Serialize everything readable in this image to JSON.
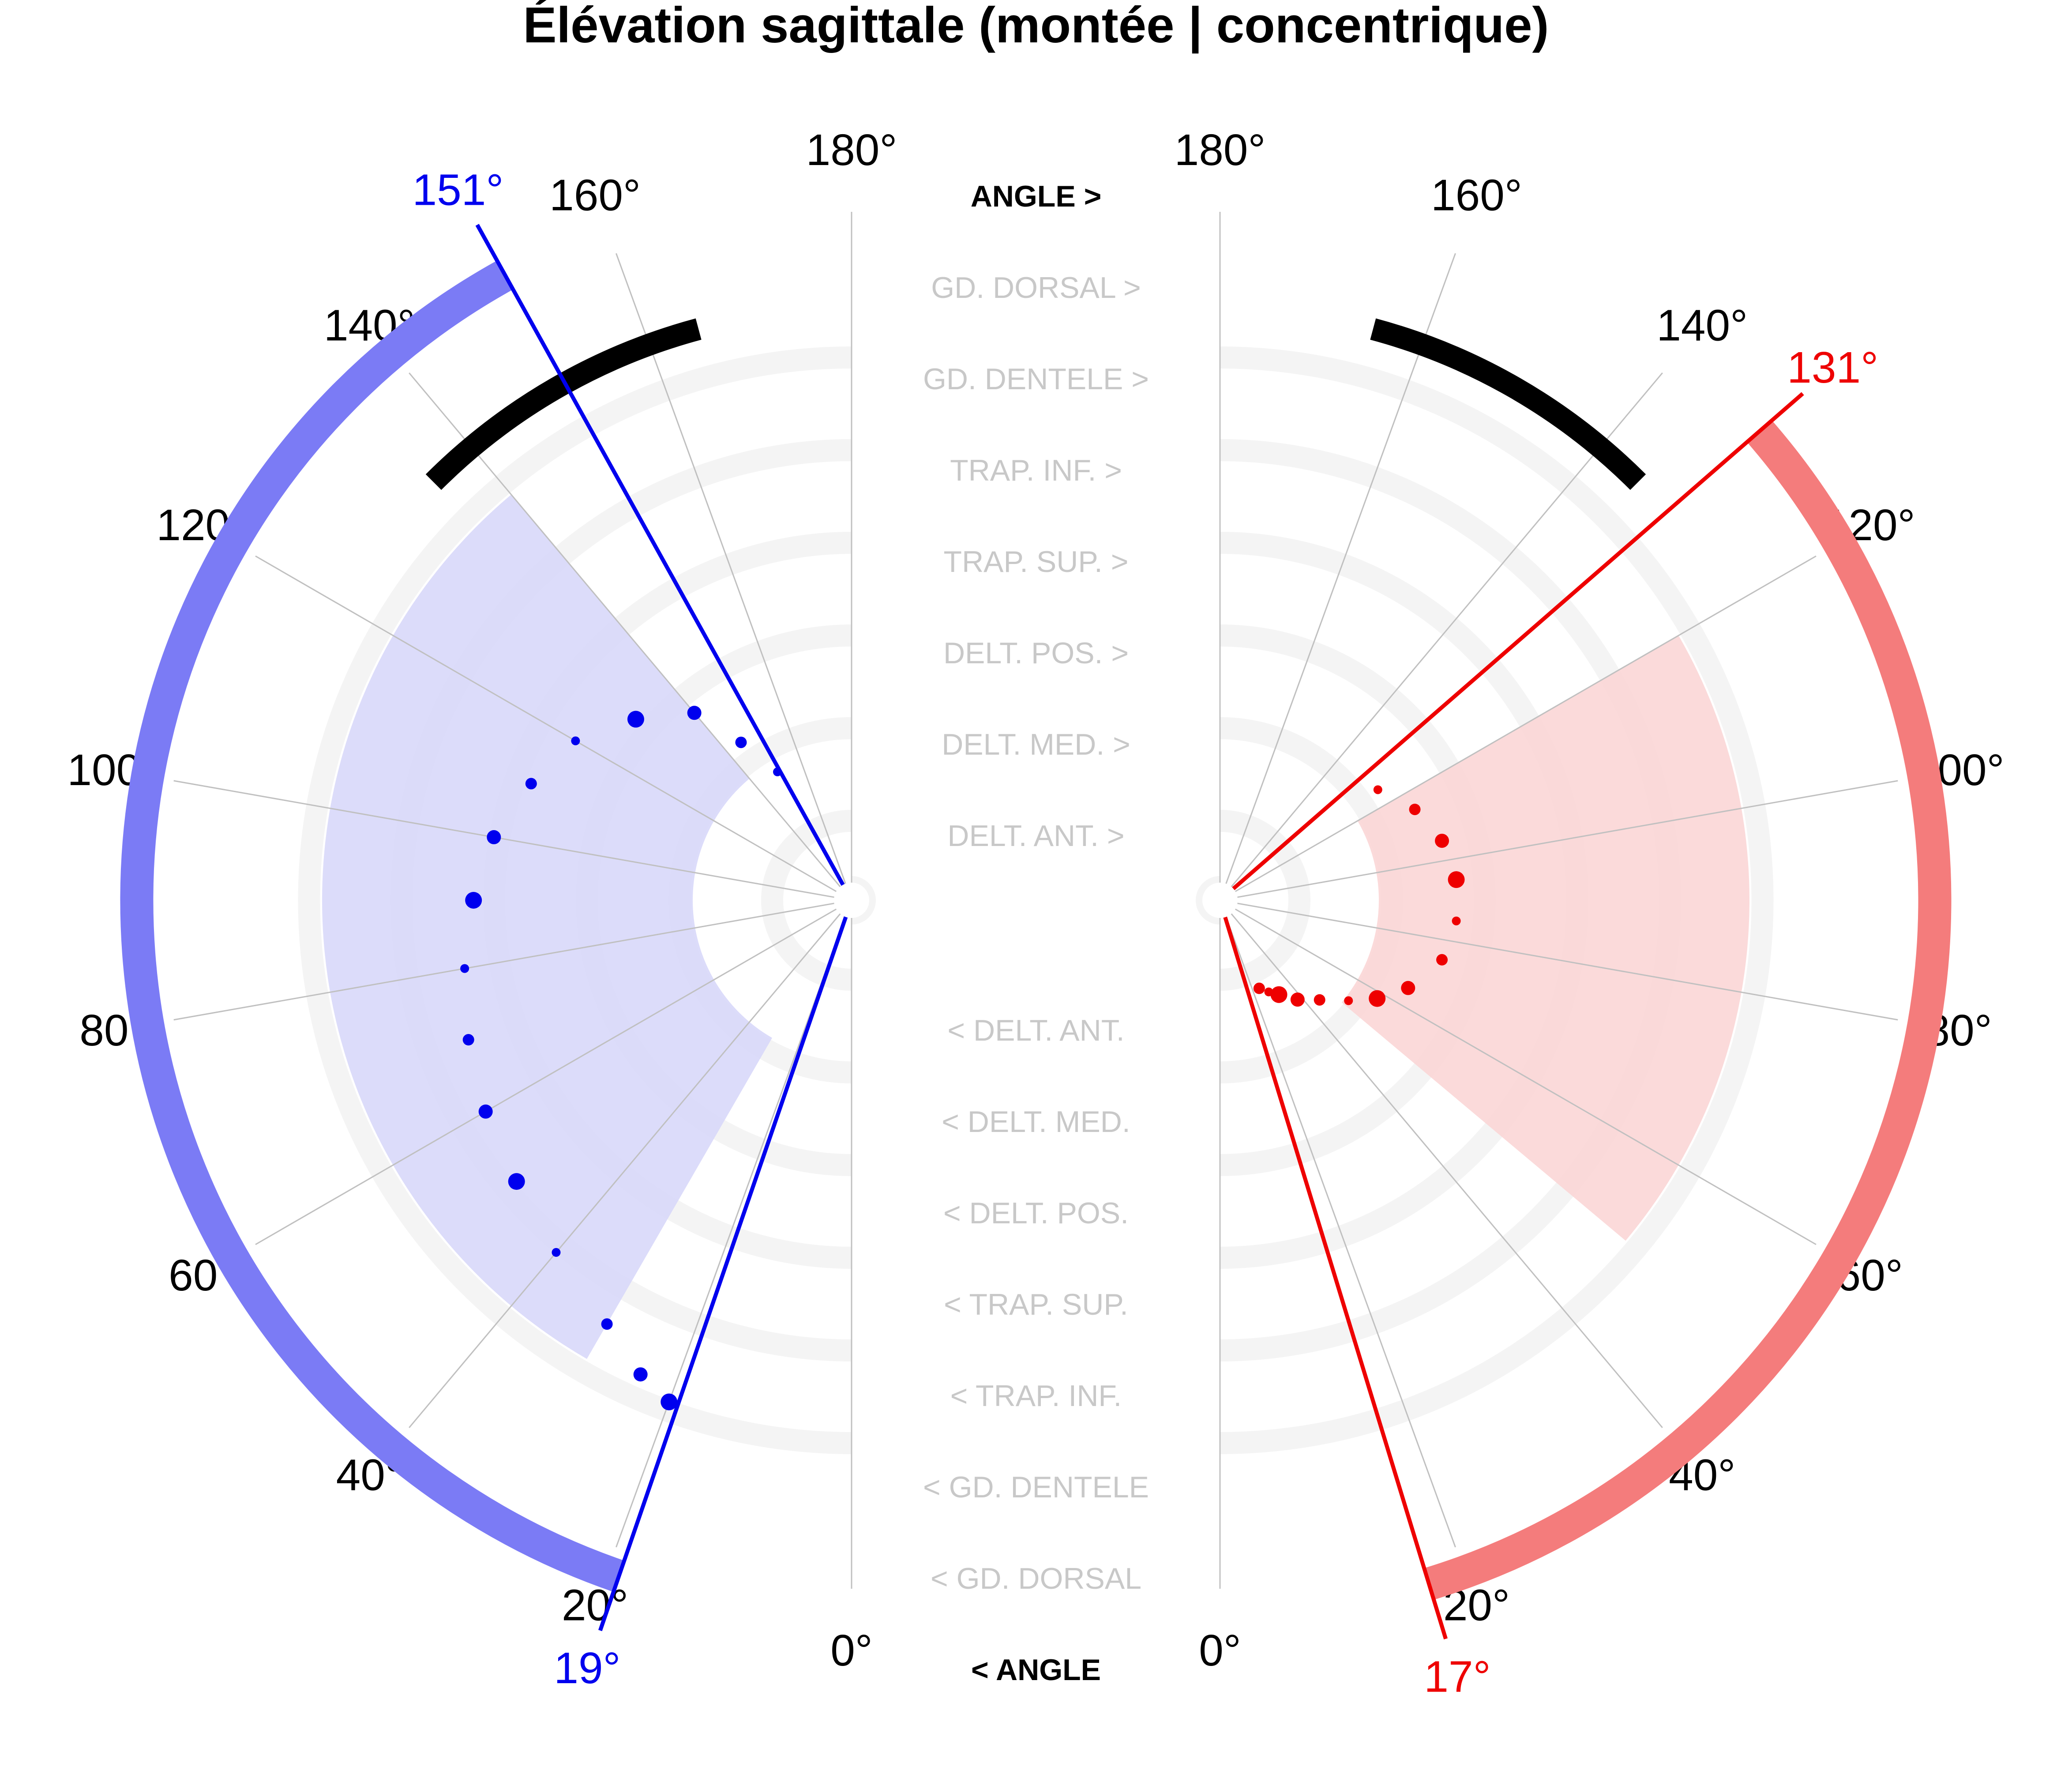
{
  "chart_data": {
    "type": "polar",
    "title": "Élévation sagittale (montée | concentrique)",
    "theta_unit": "°",
    "theta_range": [
      0,
      180
    ],
    "theta_ticks": [
      0,
      20,
      40,
      60,
      80,
      100,
      120,
      140,
      160,
      180
    ],
    "grid": true,
    "ring_labels_top": [
      "ANGLE >",
      "GD. DORSAL >",
      "GD. DENTELE >",
      "TRAP. INF. >",
      "TRAP. SUP. >",
      "DELT. POS. >",
      "DELT. MED. >",
      "DELT. ANT. >"
    ],
    "ring_labels_bottom": [
      "< DELT. ANT.",
      "< DELT. MED.",
      "< DELT. POS.",
      "< TRAP. SUP.",
      "< TRAP. INF.",
      "< GD. DENTELE",
      "< GD. DORSAL",
      "< ANGLE"
    ],
    "ring_label_colors": {
      "angle": "#000000",
      "muscle": "#c8c8c8"
    },
    "left": {
      "side": "left",
      "color": "#0000ee",
      "range_color": "#7b7bf5",
      "fill_color": "#d8d8fa",
      "start_angle": 19,
      "end_angle": 151,
      "start_label": "19°",
      "end_label": "151°",
      "reference_arc": [
        135,
        165
      ],
      "highlight_sector": [
        30,
        140
      ],
      "trajectory": [
        [
          150,
          0.2
        ],
        [
          145,
          0.26
        ],
        [
          140,
          0.33
        ],
        [
          130,
          0.38
        ],
        [
          120,
          0.43
        ],
        [
          110,
          0.46
        ],
        [
          100,
          0.49
        ],
        [
          90,
          0.51
        ],
        [
          80,
          0.53
        ],
        [
          70,
          0.55
        ],
        [
          60,
          0.57
        ],
        [
          50,
          0.59
        ],
        [
          40,
          0.62
        ],
        [
          30,
          0.66
        ],
        [
          24,
          0.7
        ],
        [
          20,
          0.72
        ]
      ]
    },
    "right": {
      "side": "right",
      "color": "#ee0000",
      "range_color": "#f47c7c",
      "fill_color": "#fbd6d6",
      "start_angle": 17,
      "end_angle": 131,
      "start_label": "17°",
      "end_label": "131°",
      "reference_arc": [
        135,
        165
      ],
      "highlight_sector": [
        50,
        120
      ],
      "trajectory": [
        [
          125,
          0.26
        ],
        [
          115,
          0.29
        ],
        [
          105,
          0.31
        ],
        [
          95,
          0.32
        ],
        [
          85,
          0.32
        ],
        [
          75,
          0.31
        ],
        [
          65,
          0.28
        ],
        [
          58,
          0.25
        ],
        [
          52,
          0.22
        ],
        [
          45,
          0.19
        ],
        [
          38,
          0.17
        ],
        [
          32,
          0.15
        ],
        [
          28,
          0.14
        ],
        [
          24,
          0.13
        ]
      ]
    }
  }
}
